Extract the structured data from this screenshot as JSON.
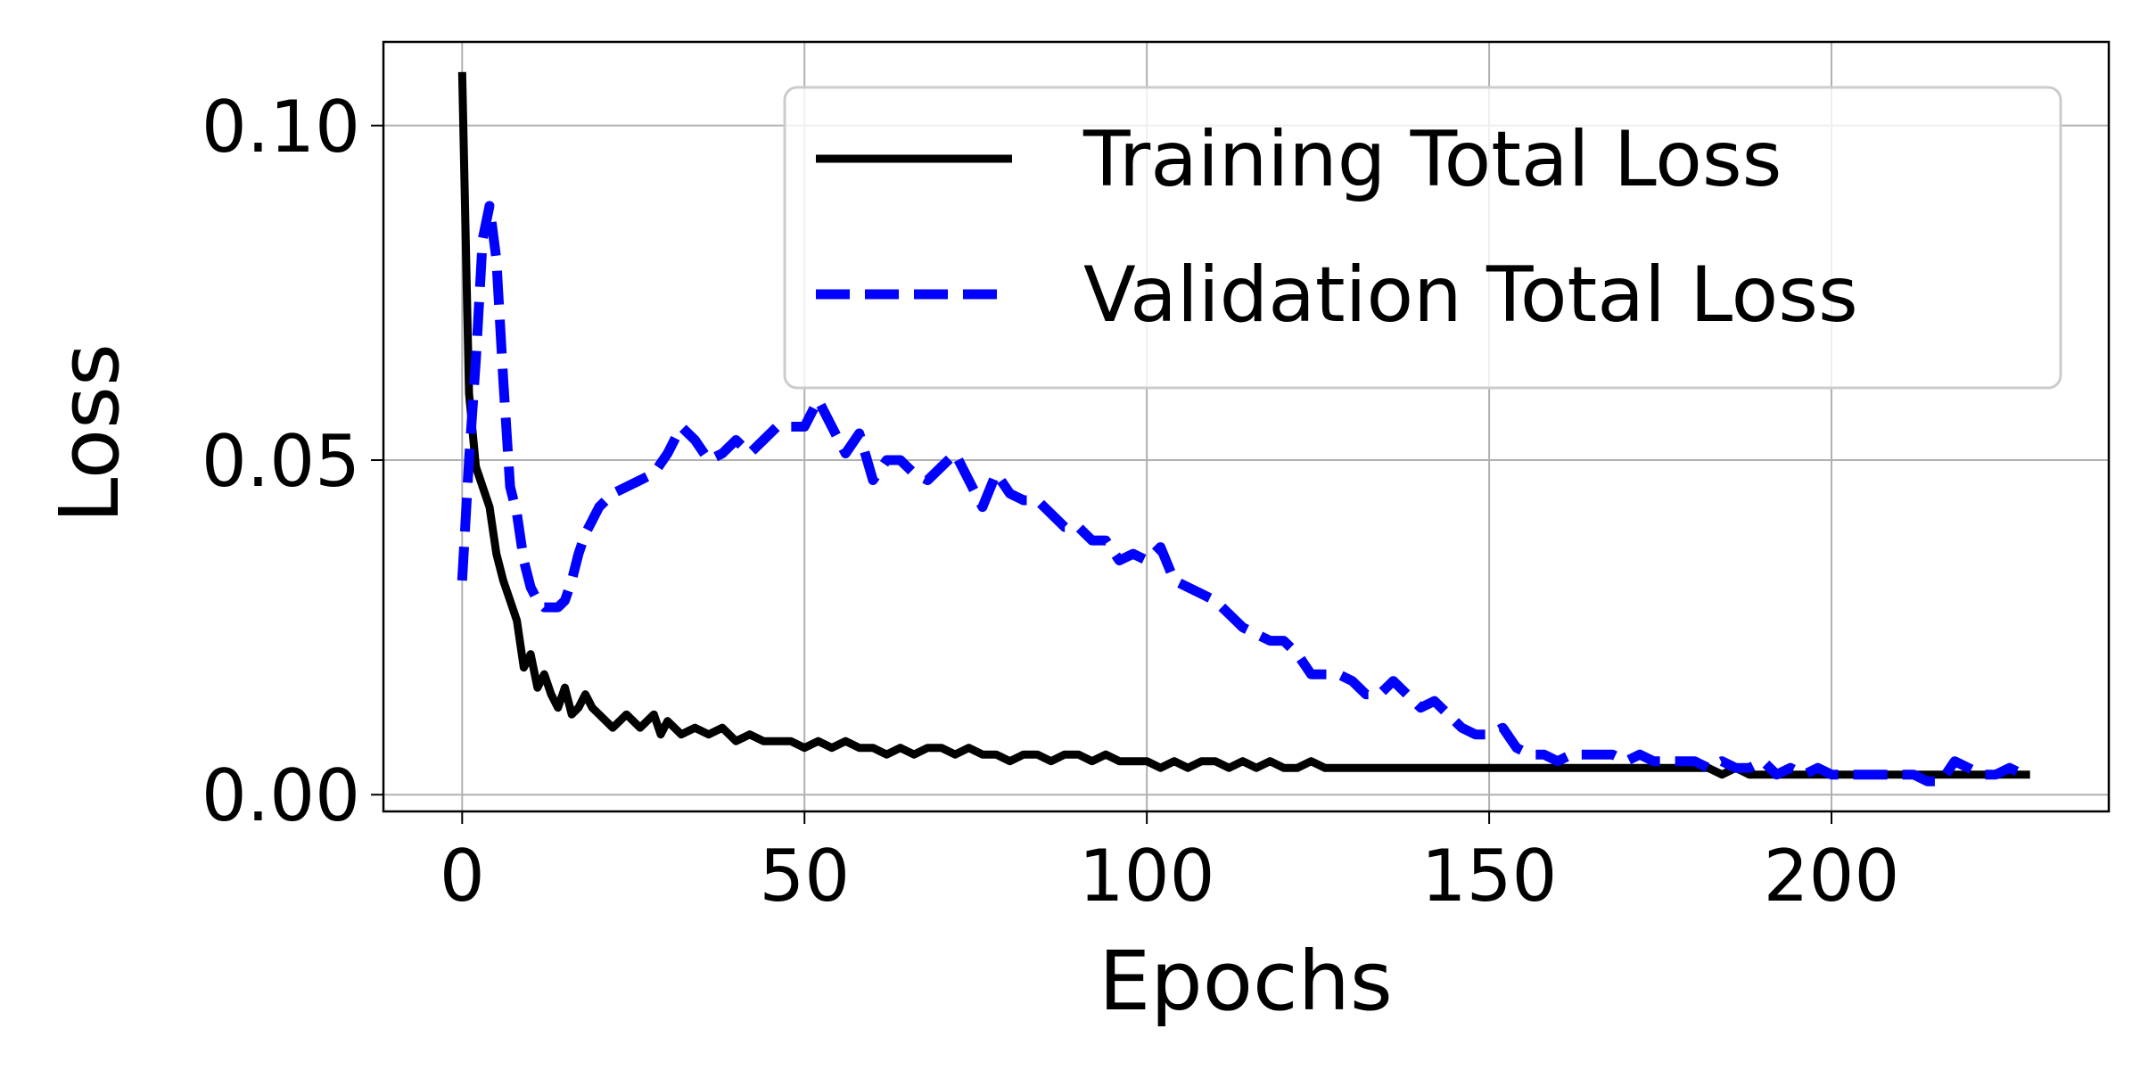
{
  "chart_data": {
    "type": "line",
    "title": "",
    "xlabel": "Epochs",
    "ylabel": "Loss",
    "xlim": [
      -11.5,
      240.5
    ],
    "ylim": [
      -0.0025,
      0.1125
    ],
    "xticks": [
      0,
      50,
      100,
      150,
      200
    ],
    "xtick_labels": [
      "0",
      "50",
      "100",
      "150",
      "200"
    ],
    "yticks": [
      0.0,
      0.05,
      0.1
    ],
    "ytick_labels": [
      "0.00",
      "0.05",
      "0.10"
    ],
    "grid": true,
    "legend_position": "upper-right",
    "series": [
      {
        "name": "Training Total Loss",
        "color": "#000000",
        "style": "solid",
        "points": [
          [
            0,
            0.108
          ],
          [
            1,
            0.06
          ],
          [
            2,
            0.049
          ],
          [
            3,
            0.046
          ],
          [
            4,
            0.043
          ],
          [
            5,
            0.036
          ],
          [
            6,
            0.032
          ],
          [
            7,
            0.029
          ],
          [
            8,
            0.026
          ],
          [
            9,
            0.019
          ],
          [
            10,
            0.021
          ],
          [
            11,
            0.016
          ],
          [
            12,
            0.018
          ],
          [
            13,
            0.015
          ],
          [
            14,
            0.013
          ],
          [
            15,
            0.016
          ],
          [
            16,
            0.012
          ],
          [
            17,
            0.013
          ],
          [
            18,
            0.015
          ],
          [
            19,
            0.013
          ],
          [
            20,
            0.012
          ],
          [
            22,
            0.01
          ],
          [
            24,
            0.012
          ],
          [
            26,
            0.01
          ],
          [
            28,
            0.012
          ],
          [
            29,
            0.009
          ],
          [
            30,
            0.011
          ],
          [
            32,
            0.009
          ],
          [
            34,
            0.01
          ],
          [
            36,
            0.009
          ],
          [
            38,
            0.01
          ],
          [
            40,
            0.008
          ],
          [
            42,
            0.009
          ],
          [
            44,
            0.008
          ],
          [
            46,
            0.008
          ],
          [
            48,
            0.008
          ],
          [
            50,
            0.007
          ],
          [
            52,
            0.008
          ],
          [
            54,
            0.007
          ],
          [
            56,
            0.008
          ],
          [
            58,
            0.007
          ],
          [
            60,
            0.007
          ],
          [
            62,
            0.006
          ],
          [
            64,
            0.007
          ],
          [
            66,
            0.006
          ],
          [
            68,
            0.007
          ],
          [
            70,
            0.007
          ],
          [
            72,
            0.006
          ],
          [
            74,
            0.007
          ],
          [
            76,
            0.006
          ],
          [
            78,
            0.006
          ],
          [
            80,
            0.005
          ],
          [
            82,
            0.006
          ],
          [
            84,
            0.006
          ],
          [
            86,
            0.005
          ],
          [
            88,
            0.006
          ],
          [
            90,
            0.006
          ],
          [
            92,
            0.005
          ],
          [
            94,
            0.006
          ],
          [
            96,
            0.005
          ],
          [
            98,
            0.005
          ],
          [
            100,
            0.005
          ],
          [
            102,
            0.004
          ],
          [
            104,
            0.005
          ],
          [
            106,
            0.004
          ],
          [
            108,
            0.005
          ],
          [
            110,
            0.005
          ],
          [
            112,
            0.004
          ],
          [
            114,
            0.005
          ],
          [
            116,
            0.004
          ],
          [
            118,
            0.005
          ],
          [
            120,
            0.004
          ],
          [
            122,
            0.004
          ],
          [
            124,
            0.005
          ],
          [
            126,
            0.004
          ],
          [
            128,
            0.004
          ],
          [
            130,
            0.004
          ],
          [
            132,
            0.004
          ],
          [
            134,
            0.004
          ],
          [
            136,
            0.004
          ],
          [
            138,
            0.004
          ],
          [
            140,
            0.004
          ],
          [
            142,
            0.004
          ],
          [
            144,
            0.004
          ],
          [
            146,
            0.004
          ],
          [
            148,
            0.004
          ],
          [
            150,
            0.004
          ],
          [
            152,
            0.004
          ],
          [
            154,
            0.004
          ],
          [
            156,
            0.004
          ],
          [
            158,
            0.004
          ],
          [
            160,
            0.004
          ],
          [
            162,
            0.004
          ],
          [
            164,
            0.004
          ],
          [
            166,
            0.004
          ],
          [
            168,
            0.004
          ],
          [
            170,
            0.004
          ],
          [
            172,
            0.004
          ],
          [
            174,
            0.004
          ],
          [
            176,
            0.004
          ],
          [
            178,
            0.004
          ],
          [
            180,
            0.004
          ],
          [
            182,
            0.004
          ],
          [
            184,
            0.003
          ],
          [
            186,
            0.004
          ],
          [
            188,
            0.003
          ],
          [
            190,
            0.003
          ],
          [
            192,
            0.003
          ],
          [
            194,
            0.003
          ],
          [
            196,
            0.003
          ],
          [
            198,
            0.003
          ],
          [
            200,
            0.003
          ],
          [
            202,
            0.003
          ],
          [
            204,
            0.003
          ],
          [
            206,
            0.003
          ],
          [
            208,
            0.003
          ],
          [
            210,
            0.003
          ],
          [
            212,
            0.003
          ],
          [
            214,
            0.003
          ],
          [
            216,
            0.003
          ],
          [
            218,
            0.003
          ],
          [
            220,
            0.003
          ],
          [
            222,
            0.003
          ],
          [
            224,
            0.003
          ],
          [
            226,
            0.003
          ],
          [
            228,
            0.003
          ],
          [
            229,
            0.003
          ]
        ]
      },
      {
        "name": "Validation Total Loss",
        "color": "#0000ff",
        "style": "dashed",
        "points": [
          [
            0,
            0.032
          ],
          [
            1,
            0.05
          ],
          [
            2,
            0.065
          ],
          [
            3,
            0.083
          ],
          [
            4,
            0.088
          ],
          [
            5,
            0.08
          ],
          [
            6,
            0.062
          ],
          [
            7,
            0.046
          ],
          [
            8,
            0.042
          ],
          [
            9,
            0.035
          ],
          [
            10,
            0.031
          ],
          [
            11,
            0.029
          ],
          [
            12,
            0.028
          ],
          [
            13,
            0.028
          ],
          [
            14,
            0.028
          ],
          [
            15,
            0.029
          ],
          [
            16,
            0.032
          ],
          [
            17,
            0.036
          ],
          [
            18,
            0.039
          ],
          [
            19,
            0.041
          ],
          [
            20,
            0.043
          ],
          [
            22,
            0.045
          ],
          [
            24,
            0.046
          ],
          [
            26,
            0.047
          ],
          [
            28,
            0.048
          ],
          [
            30,
            0.051
          ],
          [
            32,
            0.055
          ],
          [
            34,
            0.053
          ],
          [
            36,
            0.05
          ],
          [
            38,
            0.051
          ],
          [
            40,
            0.053
          ],
          [
            42,
            0.051
          ],
          [
            44,
            0.053
          ],
          [
            46,
            0.055
          ],
          [
            48,
            0.055
          ],
          [
            50,
            0.055
          ],
          [
            52,
            0.059
          ],
          [
            54,
            0.055
          ],
          [
            56,
            0.051
          ],
          [
            58,
            0.054
          ],
          [
            60,
            0.047
          ],
          [
            62,
            0.05
          ],
          [
            64,
            0.05
          ],
          [
            66,
            0.048
          ],
          [
            68,
            0.047
          ],
          [
            70,
            0.049
          ],
          [
            72,
            0.051
          ],
          [
            74,
            0.047
          ],
          [
            76,
            0.043
          ],
          [
            78,
            0.048
          ],
          [
            80,
            0.045
          ],
          [
            82,
            0.044
          ],
          [
            84,
            0.044
          ],
          [
            86,
            0.042
          ],
          [
            88,
            0.04
          ],
          [
            90,
            0.04
          ],
          [
            92,
            0.038
          ],
          [
            94,
            0.038
          ],
          [
            96,
            0.035
          ],
          [
            98,
            0.036
          ],
          [
            100,
            0.035
          ],
          [
            102,
            0.037
          ],
          [
            104,
            0.032
          ],
          [
            106,
            0.031
          ],
          [
            108,
            0.03
          ],
          [
            110,
            0.029
          ],
          [
            112,
            0.027
          ],
          [
            114,
            0.025
          ],
          [
            116,
            0.024
          ],
          [
            118,
            0.023
          ],
          [
            120,
            0.023
          ],
          [
            122,
            0.021
          ],
          [
            124,
            0.018
          ],
          [
            126,
            0.018
          ],
          [
            128,
            0.018
          ],
          [
            130,
            0.017
          ],
          [
            132,
            0.015
          ],
          [
            134,
            0.015
          ],
          [
            136,
            0.017
          ],
          [
            138,
            0.015
          ],
          [
            140,
            0.013
          ],
          [
            142,
            0.014
          ],
          [
            144,
            0.012
          ],
          [
            146,
            0.01
          ],
          [
            148,
            0.009
          ],
          [
            150,
            0.009
          ],
          [
            152,
            0.01
          ],
          [
            154,
            0.007
          ],
          [
            156,
            0.006
          ],
          [
            158,
            0.006
          ],
          [
            160,
            0.005
          ],
          [
            162,
            0.006
          ],
          [
            164,
            0.006
          ],
          [
            166,
            0.006
          ],
          [
            168,
            0.006
          ],
          [
            170,
            0.005
          ],
          [
            172,
            0.006
          ],
          [
            174,
            0.005
          ],
          [
            176,
            0.005
          ],
          [
            178,
            0.005
          ],
          [
            180,
            0.005
          ],
          [
            182,
            0.004
          ],
          [
            184,
            0.005
          ],
          [
            186,
            0.004
          ],
          [
            188,
            0.004
          ],
          [
            190,
            0.005
          ],
          [
            192,
            0.003
          ],
          [
            194,
            0.004
          ],
          [
            196,
            0.003
          ],
          [
            198,
            0.004
          ],
          [
            200,
            0.003
          ],
          [
            202,
            0.003
          ],
          [
            204,
            0.003
          ],
          [
            206,
            0.003
          ],
          [
            208,
            0.003
          ],
          [
            210,
            0.003
          ],
          [
            212,
            0.003
          ],
          [
            214,
            0.002
          ],
          [
            216,
            0.002
          ],
          [
            218,
            0.005
          ],
          [
            220,
            0.004
          ],
          [
            222,
            0.003
          ],
          [
            224,
            0.003
          ],
          [
            226,
            0.004
          ],
          [
            228,
            0.003
          ],
          [
            229,
            0.003
          ]
        ]
      }
    ]
  }
}
